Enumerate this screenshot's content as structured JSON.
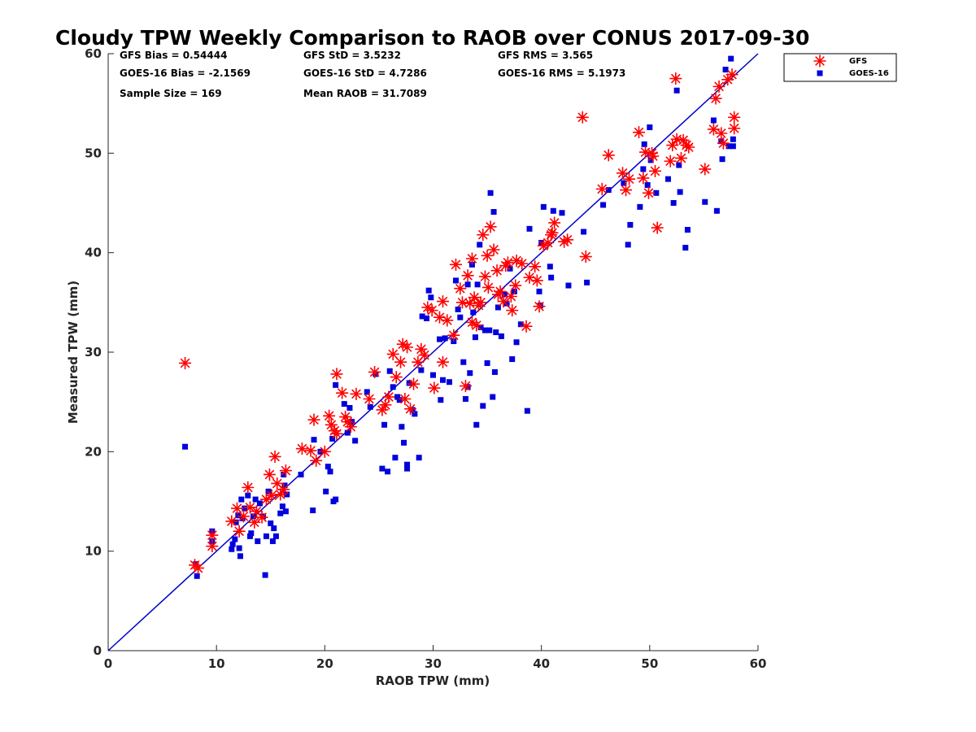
{
  "chart_data": {
    "type": "scatter",
    "title": "Cloudy TPW Weekly Comparison to RAOB over CONUS 2017-09-30",
    "xlabel": "RAOB TPW (mm)",
    "ylabel": "Measured TPW (mm)",
    "xlim": [
      0,
      60
    ],
    "ylim": [
      0,
      60
    ],
    "xticks": [
      "0",
      "10",
      "20",
      "30",
      "40",
      "50",
      "60"
    ],
    "yticks": [
      "0",
      "10",
      "20",
      "30",
      "40",
      "50",
      "60"
    ],
    "grid": false,
    "legend_position": "top-right, outside plot",
    "reference_line": {
      "type": "one-to-one",
      "color": "#0000cc"
    },
    "stats": {
      "gfs_bias": "GFS Bias = 0.54444",
      "gfs_std": "GFS StD = 3.5232",
      "gfs_rms": "GFS RMS = 3.565",
      "goes_bias": "GOES-16 Bias = -2.1569",
      "goes_std": "GOES-16 StD = 4.7286",
      "goes_rms": "GOES-16 RMS = 5.1973",
      "sample_size": "Sample Size = 169",
      "mean_raob": "Mean RAOB = 31.7089"
    },
    "series": [
      {
        "name": "GFS",
        "marker": "asterisk",
        "color": "#ff0000",
        "points": [
          [
            7.1,
            28.9
          ],
          [
            8.0,
            8.6
          ],
          [
            8.3,
            8.3
          ],
          [
            9.6,
            11.6
          ],
          [
            9.6,
            10.5
          ],
          [
            11.4,
            13.0
          ],
          [
            11.9,
            14.3
          ],
          [
            12.1,
            12.0
          ],
          [
            12.5,
            13.5
          ],
          [
            12.9,
            16.4
          ],
          [
            13.1,
            14.4
          ],
          [
            13.5,
            12.9
          ],
          [
            13.7,
            14.0
          ],
          [
            14.2,
            13.4
          ],
          [
            14.6,
            15.2
          ],
          [
            14.9,
            17.7
          ],
          [
            15.1,
            15.6
          ],
          [
            15.4,
            19.5
          ],
          [
            15.6,
            16.8
          ],
          [
            15.9,
            15.7
          ],
          [
            16.2,
            16.2
          ],
          [
            16.4,
            18.1
          ],
          [
            17.9,
            20.3
          ],
          [
            18.7,
            20.1
          ],
          [
            19.0,
            23.2
          ],
          [
            19.2,
            19.1
          ],
          [
            20.0,
            20.0
          ],
          [
            20.4,
            23.6
          ],
          [
            20.6,
            22.7
          ],
          [
            20.9,
            22.1
          ],
          [
            21.1,
            27.8
          ],
          [
            21.1,
            21.8
          ],
          [
            21.6,
            25.9
          ],
          [
            21.9,
            23.5
          ],
          [
            22.1,
            23.0
          ],
          [
            22.4,
            22.5
          ],
          [
            22.9,
            25.8
          ],
          [
            24.1,
            25.3
          ],
          [
            24.6,
            28.0
          ],
          [
            25.3,
            24.2
          ],
          [
            25.6,
            24.7
          ],
          [
            25.9,
            25.5
          ],
          [
            26.3,
            29.8
          ],
          [
            26.6,
            27.5
          ],
          [
            27.0,
            29.0
          ],
          [
            27.2,
            30.8
          ],
          [
            27.4,
            25.3
          ],
          [
            27.6,
            30.5
          ],
          [
            27.9,
            24.3
          ],
          [
            28.2,
            26.8
          ],
          [
            28.6,
            29.0
          ],
          [
            28.9,
            30.3
          ],
          [
            29.2,
            29.7
          ],
          [
            29.5,
            34.5
          ],
          [
            29.9,
            34.2
          ],
          [
            30.1,
            26.4
          ],
          [
            30.6,
            33.5
          ],
          [
            30.9,
            35.1
          ],
          [
            30.9,
            29.0
          ],
          [
            31.3,
            33.2
          ],
          [
            31.9,
            31.7
          ],
          [
            32.1,
            38.8
          ],
          [
            32.5,
            36.4
          ],
          [
            32.7,
            35.0
          ],
          [
            33.0,
            26.6
          ],
          [
            33.2,
            37.7
          ],
          [
            33.4,
            34.9
          ],
          [
            33.6,
            33.0
          ],
          [
            33.6,
            39.4
          ],
          [
            33.8,
            35.5
          ],
          [
            34.0,
            32.7
          ],
          [
            34.2,
            34.7
          ],
          [
            34.4,
            35.0
          ],
          [
            34.6,
            41.8
          ],
          [
            34.8,
            37.6
          ],
          [
            35.0,
            39.7
          ],
          [
            35.1,
            36.5
          ],
          [
            35.3,
            42.6
          ],
          [
            35.6,
            40.3
          ],
          [
            35.9,
            38.2
          ],
          [
            36.0,
            35.8
          ],
          [
            36.2,
            36.1
          ],
          [
            36.5,
            35.1
          ],
          [
            36.7,
            38.7
          ],
          [
            36.9,
            39.0
          ],
          [
            37.2,
            35.6
          ],
          [
            37.3,
            34.2
          ],
          [
            37.6,
            36.7
          ],
          [
            37.7,
            39.2
          ],
          [
            38.2,
            38.9
          ],
          [
            38.6,
            32.6
          ],
          [
            38.9,
            37.5
          ],
          [
            39.4,
            38.6
          ],
          [
            39.6,
            37.2
          ],
          [
            39.8,
            34.6
          ],
          [
            40.2,
            40.7
          ],
          [
            40.6,
            41.0
          ],
          [
            40.9,
            41.8
          ],
          [
            41.2,
            43.0
          ],
          [
            41.0,
            42.0
          ],
          [
            42.1,
            41.1
          ],
          [
            42.4,
            41.3
          ],
          [
            43.8,
            53.6
          ],
          [
            44.1,
            39.6
          ],
          [
            45.6,
            46.4
          ],
          [
            46.2,
            49.8
          ],
          [
            47.5,
            48.0
          ],
          [
            47.8,
            46.3
          ],
          [
            48.1,
            47.4
          ],
          [
            49.0,
            52.1
          ],
          [
            49.4,
            47.5
          ],
          [
            49.6,
            50.1
          ],
          [
            49.9,
            46.0
          ],
          [
            50.2,
            50.0
          ],
          [
            50.3,
            49.7
          ],
          [
            50.5,
            48.2
          ],
          [
            50.7,
            42.5
          ],
          [
            51.9,
            49.2
          ],
          [
            52.1,
            50.8
          ],
          [
            52.4,
            57.5
          ],
          [
            52.5,
            51.4
          ],
          [
            52.9,
            49.5
          ],
          [
            53.1,
            51.3
          ],
          [
            53.4,
            50.8
          ],
          [
            53.6,
            50.6
          ],
          [
            55.1,
            48.4
          ],
          [
            55.9,
            52.4
          ],
          [
            56.1,
            55.5
          ],
          [
            56.4,
            56.7
          ],
          [
            56.6,
            52.0
          ],
          [
            56.8,
            51.0
          ],
          [
            57.2,
            57.4
          ],
          [
            57.6,
            57.9
          ],
          [
            57.8,
            53.6
          ],
          [
            57.8,
            52.5
          ]
        ]
      },
      {
        "name": "GOES-16",
        "marker": "square",
        "color": "#0000dd",
        "points": [
          [
            7.1,
            20.5
          ],
          [
            8.1,
            8.7
          ],
          [
            8.2,
            7.5
          ],
          [
            9.6,
            12.0
          ],
          [
            9.6,
            11.0
          ],
          [
            11.4,
            10.2
          ],
          [
            11.5,
            10.7
          ],
          [
            11.7,
            11.2
          ],
          [
            11.8,
            12.9
          ],
          [
            12.0,
            13.6
          ],
          [
            12.1,
            10.3
          ],
          [
            12.2,
            9.5
          ],
          [
            12.3,
            15.2
          ],
          [
            12.4,
            13.3
          ],
          [
            12.6,
            14.3
          ],
          [
            12.9,
            15.6
          ],
          [
            13.1,
            11.5
          ],
          [
            13.2,
            11.8
          ],
          [
            13.4,
            13.5
          ],
          [
            13.6,
            15.2
          ],
          [
            13.8,
            11.0
          ],
          [
            14.0,
            14.8
          ],
          [
            14.3,
            13.5
          ],
          [
            14.5,
            7.6
          ],
          [
            14.6,
            11.5
          ],
          [
            14.8,
            16.0
          ],
          [
            15.0,
            12.8
          ],
          [
            15.2,
            11.0
          ],
          [
            15.3,
            12.3
          ],
          [
            15.5,
            11.5
          ],
          [
            15.9,
            13.8
          ],
          [
            16.1,
            14.5
          ],
          [
            16.2,
            17.7
          ],
          [
            16.3,
            16.6
          ],
          [
            16.4,
            14.0
          ],
          [
            16.5,
            15.7
          ],
          [
            17.8,
            17.7
          ],
          [
            18.9,
            14.1
          ],
          [
            19.0,
            21.2
          ],
          [
            19.6,
            20.0
          ],
          [
            20.1,
            16.0
          ],
          [
            20.3,
            18.5
          ],
          [
            20.5,
            18.0
          ],
          [
            20.7,
            21.3
          ],
          [
            20.8,
            15.0
          ],
          [
            21.0,
            15.2
          ],
          [
            21.0,
            26.7
          ],
          [
            21.8,
            24.8
          ],
          [
            22.1,
            21.9
          ],
          [
            22.3,
            24.4
          ],
          [
            22.5,
            23.0
          ],
          [
            22.8,
            21.1
          ],
          [
            23.9,
            26.0
          ],
          [
            24.2,
            24.5
          ],
          [
            24.7,
            27.8
          ],
          [
            25.3,
            18.3
          ],
          [
            25.5,
            22.7
          ],
          [
            25.8,
            18.0
          ],
          [
            26.0,
            28.1
          ],
          [
            26.3,
            26.5
          ],
          [
            26.5,
            19.4
          ],
          [
            26.7,
            25.5
          ],
          [
            26.9,
            25.2
          ],
          [
            27.1,
            22.5
          ],
          [
            27.3,
            20.9
          ],
          [
            27.6,
            18.7
          ],
          [
            27.6,
            18.3
          ],
          [
            27.8,
            26.9
          ],
          [
            28.1,
            24.2
          ],
          [
            28.3,
            23.8
          ],
          [
            28.7,
            19.4
          ],
          [
            28.9,
            28.2
          ],
          [
            29.0,
            33.6
          ],
          [
            29.4,
            33.4
          ],
          [
            29.6,
            36.2
          ],
          [
            29.8,
            35.5
          ],
          [
            30.0,
            27.7
          ],
          [
            30.6,
            31.3
          ],
          [
            30.7,
            25.2
          ],
          [
            30.9,
            27.2
          ],
          [
            31.1,
            31.4
          ],
          [
            31.5,
            27.0
          ],
          [
            31.9,
            31.1
          ],
          [
            32.1,
            37.2
          ],
          [
            32.3,
            34.3
          ],
          [
            32.5,
            33.5
          ],
          [
            32.8,
            29.0
          ],
          [
            33.0,
            25.3
          ],
          [
            33.2,
            36.8
          ],
          [
            33.2,
            26.5
          ],
          [
            33.4,
            27.9
          ],
          [
            33.6,
            38.8
          ],
          [
            33.7,
            34.0
          ],
          [
            33.9,
            31.5
          ],
          [
            34.0,
            22.7
          ],
          [
            34.1,
            36.8
          ],
          [
            34.3,
            40.8
          ],
          [
            34.4,
            32.5
          ],
          [
            34.6,
            24.6
          ],
          [
            34.8,
            32.2
          ],
          [
            35.0,
            28.9
          ],
          [
            35.2,
            32.2
          ],
          [
            35.3,
            46.0
          ],
          [
            35.5,
            25.5
          ],
          [
            35.6,
            44.1
          ],
          [
            35.7,
            28.0
          ],
          [
            35.8,
            32.0
          ],
          [
            36.0,
            34.5
          ],
          [
            36.3,
            31.6
          ],
          [
            36.6,
            35.8
          ],
          [
            36.8,
            34.9
          ],
          [
            37.1,
            38.4
          ],
          [
            37.3,
            29.3
          ],
          [
            37.5,
            36.1
          ],
          [
            37.7,
            31.0
          ],
          [
            38.1,
            32.8
          ],
          [
            38.7,
            24.1
          ],
          [
            38.9,
            42.4
          ],
          [
            39.8,
            36.1
          ],
          [
            39.9,
            34.7
          ],
          [
            40.0,
            41.0
          ],
          [
            40.2,
            44.6
          ],
          [
            40.8,
            38.6
          ],
          [
            40.9,
            37.5
          ],
          [
            41.1,
            44.2
          ],
          [
            41.9,
            44.0
          ],
          [
            42.5,
            36.7
          ],
          [
            43.9,
            42.1
          ],
          [
            44.2,
            37.0
          ],
          [
            45.7,
            44.8
          ],
          [
            46.2,
            46.3
          ],
          [
            47.6,
            47.0
          ],
          [
            48.0,
            40.8
          ],
          [
            48.2,
            42.8
          ],
          [
            49.1,
            44.6
          ],
          [
            49.4,
            48.4
          ],
          [
            49.5,
            50.9
          ],
          [
            49.8,
            46.8
          ],
          [
            50.0,
            52.6
          ],
          [
            50.1,
            49.3
          ],
          [
            50.6,
            46.0
          ],
          [
            51.7,
            47.4
          ],
          [
            52.2,
            45.0
          ],
          [
            52.5,
            56.3
          ],
          [
            52.7,
            48.8
          ],
          [
            52.8,
            46.1
          ],
          [
            53.3,
            40.5
          ],
          [
            53.5,
            42.3
          ],
          [
            55.1,
            45.1
          ],
          [
            55.9,
            53.3
          ],
          [
            56.2,
            44.2
          ],
          [
            56.6,
            51.2
          ],
          [
            56.7,
            49.4
          ],
          [
            57.0,
            58.4
          ],
          [
            57.3,
            50.7
          ],
          [
            57.5,
            59.5
          ],
          [
            57.7,
            51.4
          ],
          [
            57.7,
            50.7
          ]
        ]
      }
    ]
  }
}
